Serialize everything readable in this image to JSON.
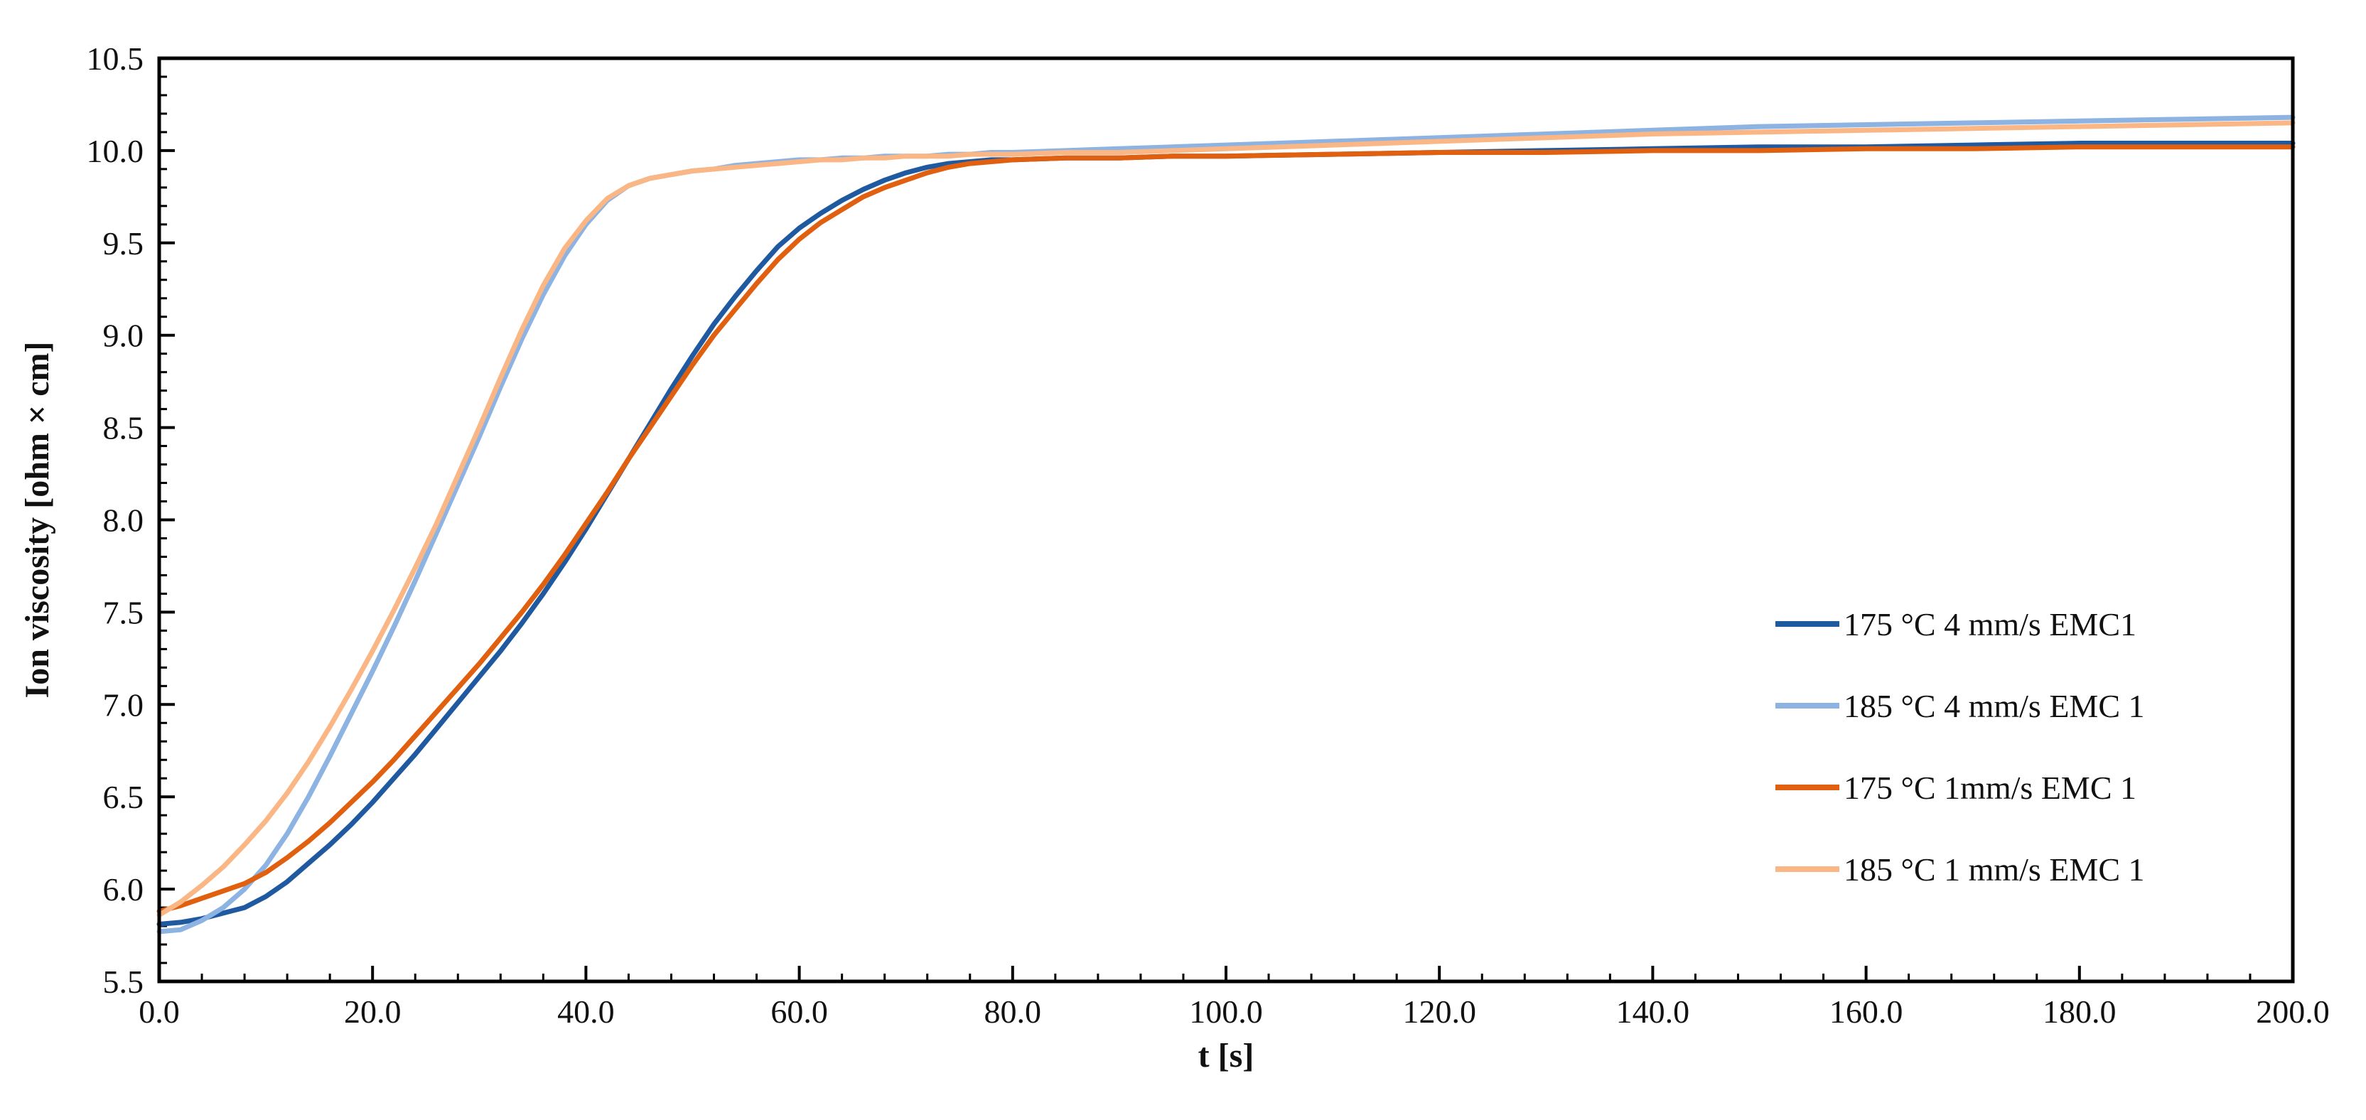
{
  "chart_data": {
    "type": "line",
    "title": "",
    "xlabel": "t [s]",
    "ylabel": "Ion viscosity [ohm × cm]",
    "xlim": [
      0,
      200
    ],
    "ylim": [
      5.5,
      10.5
    ],
    "x_ticks": [
      "0.0",
      "20.0",
      "40.0",
      "60.0",
      "80.0",
      "100.0",
      "120.0",
      "140.0",
      "160.0",
      "180.0",
      "200.0"
    ],
    "y_ticks": [
      "5.5",
      "6.0",
      "6.5",
      "7.0",
      "7.5",
      "8.0",
      "8.5",
      "9.0",
      "9.5",
      "10.0",
      "10.5"
    ],
    "grid": false,
    "legend_position": "bottom-right",
    "x": [
      0,
      2,
      4,
      6,
      8,
      10,
      12,
      14,
      16,
      18,
      20,
      22,
      24,
      26,
      28,
      30,
      32,
      34,
      36,
      38,
      40,
      42,
      44,
      46,
      48,
      50,
      52,
      54,
      56,
      58,
      60,
      62,
      64,
      66,
      68,
      70,
      72,
      74,
      76,
      78,
      80,
      85,
      90,
      95,
      100,
      110,
      120,
      130,
      140,
      150,
      160,
      170,
      180,
      190,
      200
    ],
    "series": [
      {
        "name": "175 °C 4 mm/s EMC1",
        "color": "#1f5aa0",
        "values": [
          5.81,
          5.82,
          5.84,
          5.87,
          5.9,
          5.96,
          6.04,
          6.14,
          6.24,
          6.35,
          6.47,
          6.6,
          6.73,
          6.87,
          7.01,
          7.15,
          7.29,
          7.44,
          7.6,
          7.77,
          7.95,
          8.14,
          8.33,
          8.52,
          8.71,
          8.89,
          9.06,
          9.21,
          9.35,
          9.48,
          9.58,
          9.66,
          9.73,
          9.79,
          9.84,
          9.88,
          9.91,
          9.93,
          9.94,
          9.95,
          9.95,
          9.96,
          9.96,
          9.97,
          9.97,
          9.98,
          9.99,
          10.0,
          10.01,
          10.02,
          10.02,
          10.03,
          10.04,
          10.04,
          10.04
        ]
      },
      {
        "name": "185 °C 4 mm/s EMC 1",
        "color": "#8db3e2",
        "values": [
          5.77,
          5.78,
          5.83,
          5.9,
          6.0,
          6.13,
          6.3,
          6.5,
          6.72,
          6.95,
          7.18,
          7.42,
          7.67,
          7.93,
          8.19,
          8.45,
          8.72,
          8.98,
          9.22,
          9.43,
          9.6,
          9.73,
          9.81,
          9.85,
          9.87,
          9.89,
          9.9,
          9.92,
          9.93,
          9.94,
          9.95,
          9.95,
          9.96,
          9.96,
          9.97,
          9.97,
          9.97,
          9.98,
          9.98,
          9.99,
          9.99,
          10.0,
          10.01,
          10.02,
          10.03,
          10.05,
          10.07,
          10.09,
          10.11,
          10.13,
          10.14,
          10.15,
          10.16,
          10.17,
          10.18
        ]
      },
      {
        "name": "175 °C 1mm/s EMC 1",
        "color": "#e06010",
        "values": [
          5.88,
          5.91,
          5.95,
          5.99,
          6.03,
          6.09,
          6.17,
          6.26,
          6.36,
          6.47,
          6.58,
          6.7,
          6.83,
          6.96,
          7.09,
          7.22,
          7.36,
          7.5,
          7.65,
          7.81,
          7.98,
          8.15,
          8.33,
          8.5,
          8.67,
          8.84,
          9.0,
          9.14,
          9.28,
          9.41,
          9.52,
          9.61,
          9.68,
          9.75,
          9.8,
          9.84,
          9.88,
          9.91,
          9.93,
          9.94,
          9.95,
          9.96,
          9.96,
          9.97,
          9.97,
          9.98,
          9.99,
          9.99,
          10.0,
          10.0,
          10.01,
          10.01,
          10.02,
          10.02,
          10.02
        ]
      },
      {
        "name": "185 °C 1 mm/s EMC 1",
        "color": "#fab785",
        "values": [
          5.86,
          5.93,
          6.02,
          6.12,
          6.24,
          6.37,
          6.52,
          6.69,
          6.88,
          7.08,
          7.29,
          7.51,
          7.74,
          7.98,
          8.24,
          8.5,
          8.77,
          9.03,
          9.27,
          9.47,
          9.62,
          9.74,
          9.81,
          9.85,
          9.87,
          9.89,
          9.9,
          9.91,
          9.92,
          9.93,
          9.94,
          9.95,
          9.95,
          9.96,
          9.96,
          9.97,
          9.97,
          9.97,
          9.98,
          9.98,
          9.98,
          9.99,
          9.99,
          10.0,
          10.01,
          10.03,
          10.05,
          10.07,
          10.09,
          10.1,
          10.11,
          10.12,
          10.13,
          10.14,
          10.15
        ]
      }
    ]
  }
}
